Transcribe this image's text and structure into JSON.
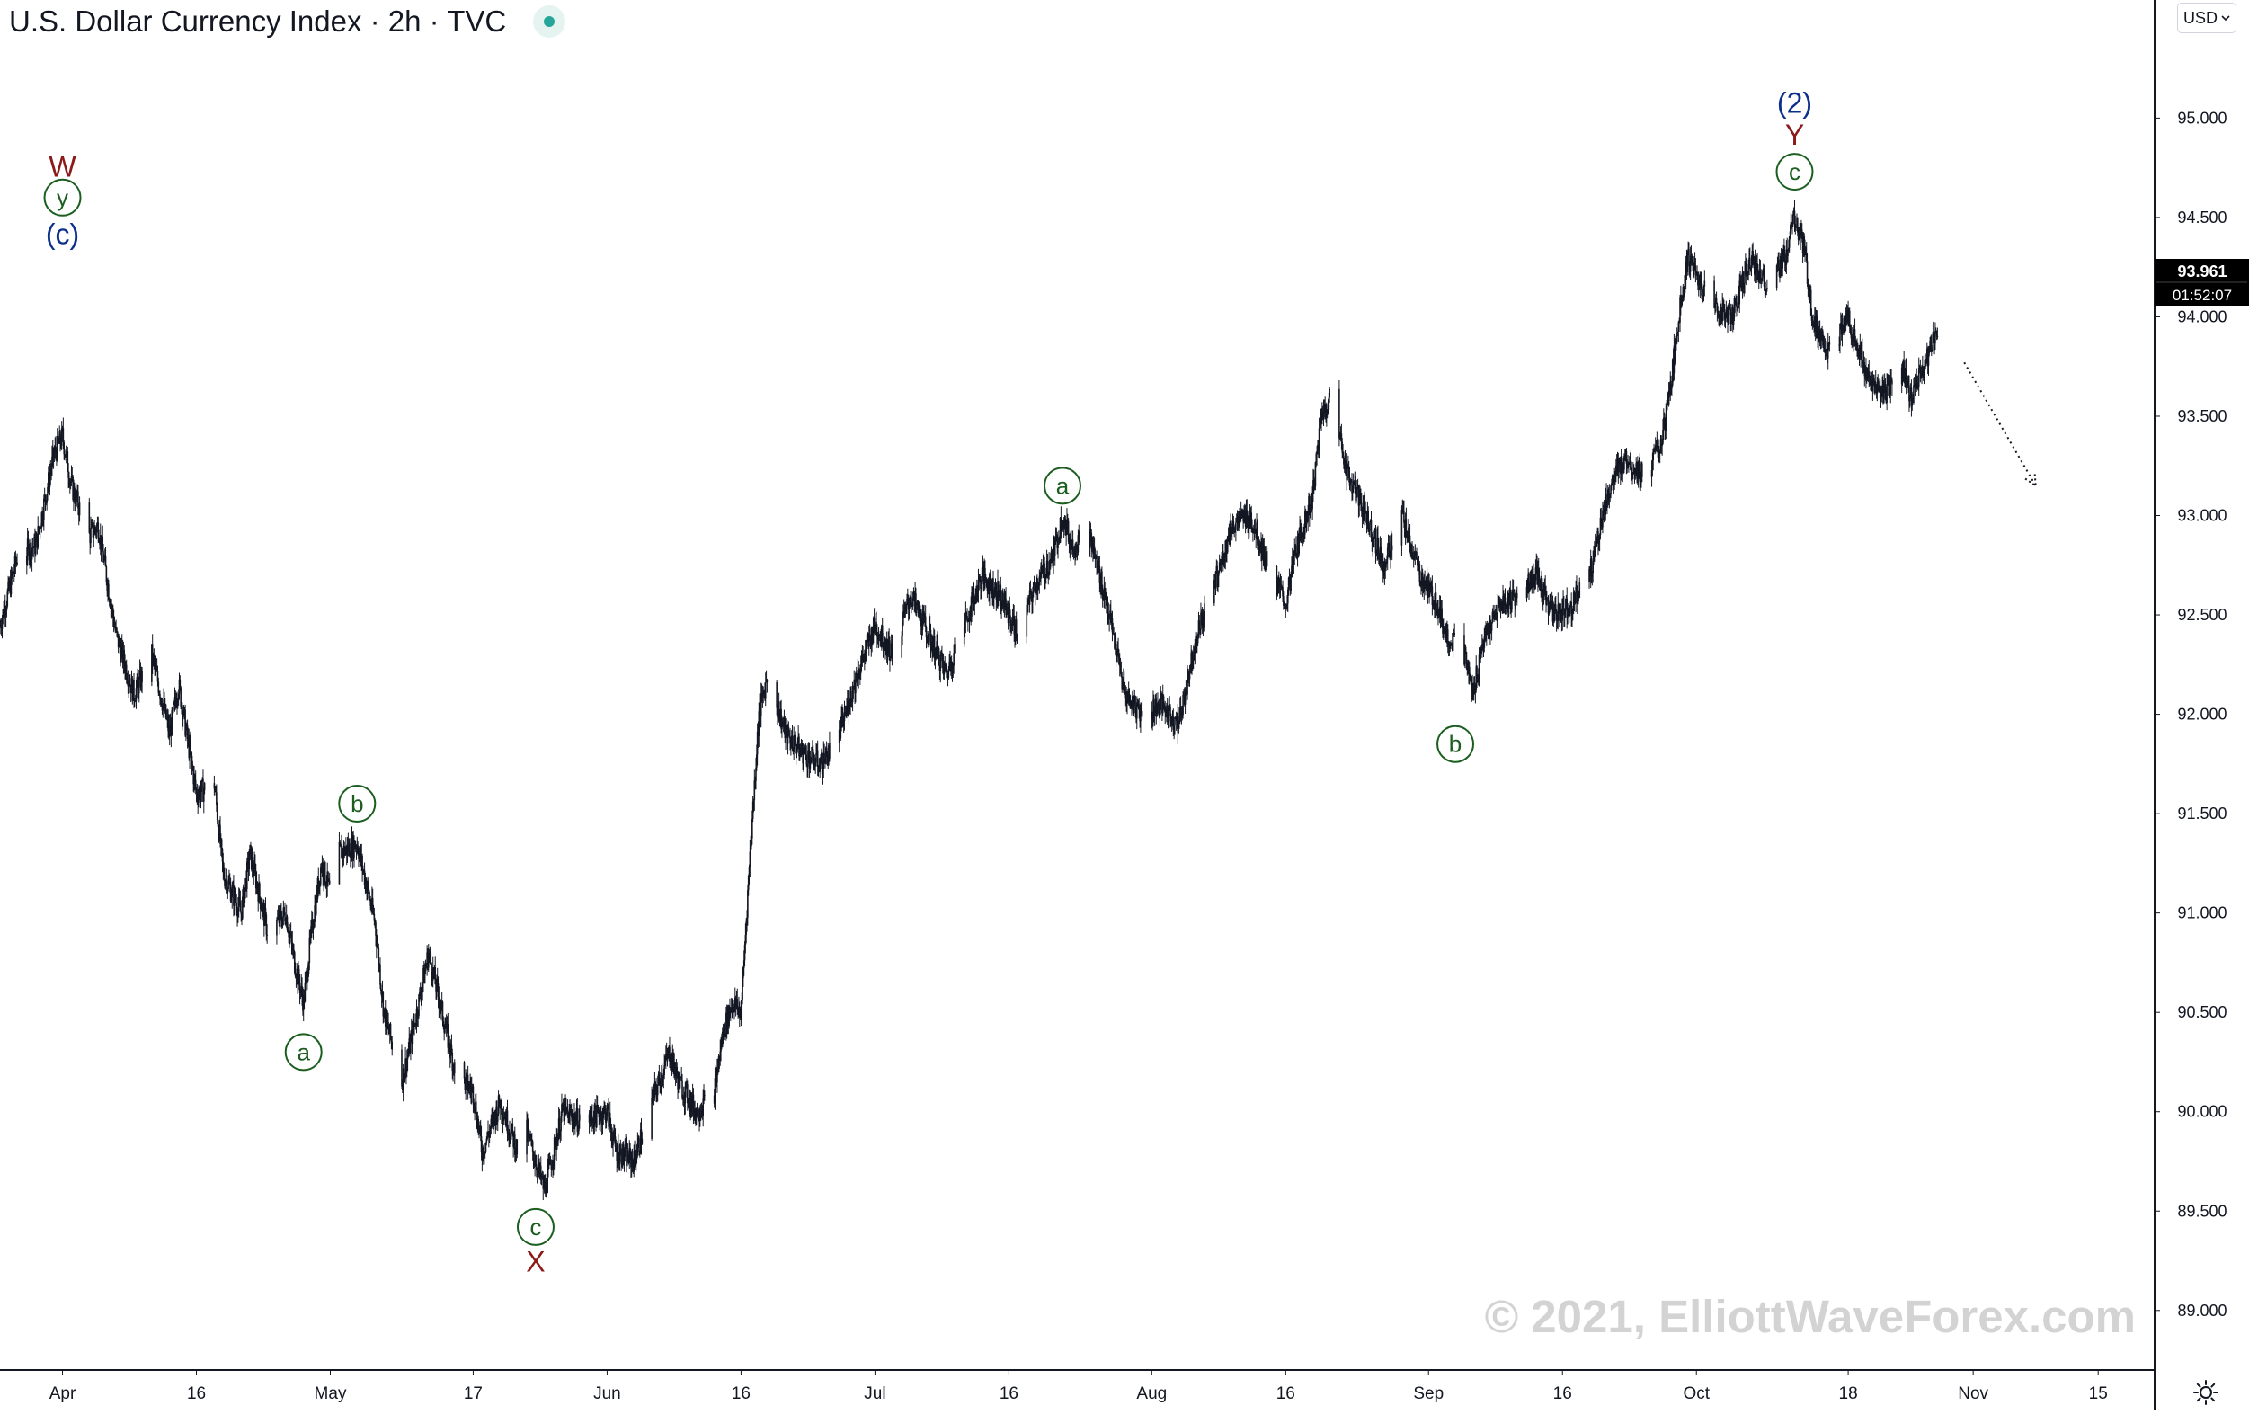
{
  "header": {
    "title": "U.S. Dollar Currency Index · 2h · TVC",
    "currency": "USD"
  },
  "price_label": {
    "price": "93.961",
    "countdown": "01:52:07"
  },
  "watermark": "© 2021, ElliottWaveForex.com",
  "colors": {
    "candle": "#131722",
    "wave_green": "#1b5e20",
    "wave_red": "#8b1a1a",
    "wave_blue": "#0d2f8c",
    "watermark": "#d3d3d3",
    "price_badge": "#000000",
    "axis_text": "#131722",
    "axis_line": "#131722"
  },
  "icons": [
    "status-dot-icon",
    "chevron-down-icon",
    "settings-sun-icon"
  ],
  "chart_data": {
    "type": "candlestick",
    "title": "U.S. Dollar Currency Index · 2h · TVC",
    "ylim": [
      88.8,
      95.35
    ],
    "y_ticks": [
      "95.000",
      "94.500",
      "94.000",
      "93.500",
      "93.000",
      "92.500",
      "92.000",
      "91.500",
      "91.000",
      "90.500",
      "90.000",
      "89.500",
      "89.000"
    ],
    "x_range": [
      "2021-03-25",
      "2021-11-18"
    ],
    "x_ticks": [
      {
        "date": "2021-04-01",
        "label": "Apr"
      },
      {
        "date": "2021-04-16",
        "label": "16"
      },
      {
        "date": "2021-05-01",
        "label": "May"
      },
      {
        "date": "2021-05-17",
        "label": "17"
      },
      {
        "date": "2021-06-01",
        "label": "Jun"
      },
      {
        "date": "2021-06-16",
        "label": "16"
      },
      {
        "date": "2021-07-01",
        "label": "Jul"
      },
      {
        "date": "2021-07-16",
        "label": "16"
      },
      {
        "date": "2021-08-01",
        "label": "Aug"
      },
      {
        "date": "2021-08-16",
        "label": "16"
      },
      {
        "date": "2021-09-01",
        "label": "Sep"
      },
      {
        "date": "2021-09-16",
        "label": "16"
      },
      {
        "date": "2021-10-01",
        "label": "Oct"
      },
      {
        "date": "2021-10-18",
        "label": "18"
      },
      {
        "date": "2021-11-01",
        "label": "Nov"
      },
      {
        "date": "2021-11-15",
        "label": "15"
      }
    ],
    "price_path": [
      [
        "2021-03-25",
        92.45
      ],
      [
        "2021-03-27",
        92.8
      ],
      [
        "2021-03-29",
        92.85
      ],
      [
        "2021-03-31",
        93.3
      ],
      [
        "2021-04-01",
        93.4
      ],
      [
        "2021-04-02",
        93.15
      ],
      [
        "2021-04-04",
        92.9
      ],
      [
        "2021-04-05",
        92.95
      ],
      [
        "2021-04-07",
        92.4
      ],
      [
        "2021-04-09",
        92.1
      ],
      [
        "2021-04-11",
        92.3
      ],
      [
        "2021-04-13",
        91.9
      ],
      [
        "2021-04-14",
        92.15
      ],
      [
        "2021-04-16",
        91.6
      ],
      [
        "2021-04-18",
        91.65
      ],
      [
        "2021-04-19",
        91.2
      ],
      [
        "2021-04-21",
        91.0
      ],
      [
        "2021-04-22",
        91.3
      ],
      [
        "2021-04-24",
        90.9
      ],
      [
        "2021-04-26",
        91.0
      ],
      [
        "2021-04-27",
        90.75
      ],
      [
        "2021-04-28",
        90.55
      ],
      [
        "2021-04-29",
        90.95
      ],
      [
        "2021-04-30",
        91.25
      ],
      [
        "2021-05-01",
        91.1
      ],
      [
        "2021-05-02",
        91.3
      ],
      [
        "2021-05-04",
        91.35
      ],
      [
        "2021-05-06",
        90.95
      ],
      [
        "2021-05-07",
        90.5
      ],
      [
        "2021-05-09",
        90.15
      ],
      [
        "2021-05-10",
        90.35
      ],
      [
        "2021-05-12",
        90.8
      ],
      [
        "2021-05-13",
        90.6
      ],
      [
        "2021-05-15",
        90.2
      ],
      [
        "2021-05-17",
        90.1
      ],
      [
        "2021-05-18",
        89.8
      ],
      [
        "2021-05-20",
        90.05
      ],
      [
        "2021-05-22",
        89.8
      ],
      [
        "2021-05-23",
        89.9
      ],
      [
        "2021-05-25",
        89.6
      ],
      [
        "2021-05-27",
        90.0
      ],
      [
        "2021-05-29",
        89.95
      ],
      [
        "2021-06-01",
        90.0
      ],
      [
        "2021-06-02",
        89.8
      ],
      [
        "2021-06-04",
        89.75
      ],
      [
        "2021-06-06",
        90.05
      ],
      [
        "2021-06-08",
        90.3
      ],
      [
        "2021-06-09",
        90.15
      ],
      [
        "2021-06-11",
        90.0
      ],
      [
        "2021-06-13",
        90.1
      ],
      [
        "2021-06-14",
        90.4
      ],
      [
        "2021-06-15",
        90.55
      ],
      [
        "2021-06-16",
        90.5
      ],
      [
        "2021-06-17",
        91.3
      ],
      [
        "2021-06-18",
        92.0
      ],
      [
        "2021-06-19",
        92.2
      ],
      [
        "2021-06-21",
        91.9
      ],
      [
        "2021-06-23",
        91.8
      ],
      [
        "2021-06-25",
        91.75
      ],
      [
        "2021-06-27",
        91.9
      ],
      [
        "2021-06-29",
        92.2
      ],
      [
        "2021-07-01",
        92.45
      ],
      [
        "2021-07-03",
        92.3
      ],
      [
        "2021-07-05",
        92.6
      ],
      [
        "2021-07-07",
        92.4
      ],
      [
        "2021-07-09",
        92.2
      ],
      [
        "2021-07-11",
        92.45
      ],
      [
        "2021-07-13",
        92.7
      ],
      [
        "2021-07-15",
        92.6
      ],
      [
        "2021-07-17",
        92.4
      ],
      [
        "2021-07-19",
        92.65
      ],
      [
        "2021-07-21",
        92.8
      ],
      [
        "2021-07-22",
        93.0
      ],
      [
        "2021-07-23",
        92.85
      ],
      [
        "2021-07-25",
        92.9
      ],
      [
        "2021-07-27",
        92.55
      ],
      [
        "2021-07-29",
        92.1
      ],
      [
        "2021-07-31",
        92.0
      ],
      [
        "2021-08-02",
        92.05
      ],
      [
        "2021-08-04",
        91.95
      ],
      [
        "2021-08-06",
        92.4
      ],
      [
        "2021-08-08",
        92.65
      ],
      [
        "2021-08-10",
        92.95
      ],
      [
        "2021-08-12",
        93.0
      ],
      [
        "2021-08-14",
        92.75
      ],
      [
        "2021-08-16",
        92.55
      ],
      [
        "2021-08-17",
        92.8
      ],
      [
        "2021-08-19",
        93.1
      ],
      [
        "2021-08-20",
        93.5
      ],
      [
        "2021-08-21",
        93.6
      ],
      [
        "2021-08-23",
        93.2
      ],
      [
        "2021-08-25",
        93.0
      ],
      [
        "2021-08-27",
        92.75
      ],
      [
        "2021-08-29",
        93.0
      ],
      [
        "2021-08-31",
        92.7
      ],
      [
        "2021-09-02",
        92.55
      ],
      [
        "2021-09-03",
        92.4
      ],
      [
        "2021-09-05",
        92.3
      ],
      [
        "2021-09-06",
        92.1
      ],
      [
        "2021-09-07",
        92.35
      ],
      [
        "2021-09-09",
        92.55
      ],
      [
        "2021-09-11",
        92.6
      ],
      [
        "2021-09-13",
        92.7
      ],
      [
        "2021-09-15",
        92.5
      ],
      [
        "2021-09-17",
        92.55
      ],
      [
        "2021-09-19",
        92.7
      ],
      [
        "2021-09-21",
        93.1
      ],
      [
        "2021-09-23",
        93.3
      ],
      [
        "2021-09-25",
        93.2
      ],
      [
        "2021-09-27",
        93.35
      ],
      [
        "2021-09-28",
        93.6
      ],
      [
        "2021-09-29",
        94.0
      ],
      [
        "2021-09-30",
        94.3
      ],
      [
        "2021-10-01",
        94.2
      ],
      [
        "2021-10-03",
        94.05
      ],
      [
        "2021-10-05",
        94.0
      ],
      [
        "2021-10-07",
        94.3
      ],
      [
        "2021-10-09",
        94.15
      ],
      [
        "2021-10-11",
        94.3
      ],
      [
        "2021-10-12",
        94.5
      ],
      [
        "2021-10-13",
        94.35
      ],
      [
        "2021-10-14",
        94.0
      ],
      [
        "2021-10-16",
        93.8
      ],
      [
        "2021-10-18",
        94.0
      ],
      [
        "2021-10-20",
        93.7
      ],
      [
        "2021-10-22",
        93.6
      ],
      [
        "2021-10-24",
        93.75
      ],
      [
        "2021-10-25",
        93.6
      ],
      [
        "2021-10-27",
        93.8
      ],
      [
        "2021-10-28",
        93.96
      ]
    ],
    "annotations": [
      {
        "label": "W",
        "date": "2021-04-01",
        "price": 94.76,
        "style": "plain",
        "color": "red"
      },
      {
        "label": "y",
        "date": "2021-04-01",
        "price": 94.6,
        "style": "circle",
        "color": "green"
      },
      {
        "label": "(c)",
        "date": "2021-04-01",
        "price": 94.42,
        "style": "plain",
        "color": "blue"
      },
      {
        "label": "a",
        "date": "2021-04-28",
        "price": 90.3,
        "style": "circle",
        "color": "green"
      },
      {
        "label": "b",
        "date": "2021-05-04",
        "price": 91.55,
        "style": "circle",
        "color": "green"
      },
      {
        "label": "c",
        "date": "2021-05-24",
        "price": 89.42,
        "style": "circle",
        "color": "green"
      },
      {
        "label": "X",
        "date": "2021-05-24",
        "price": 89.25,
        "style": "plain",
        "color": "red"
      },
      {
        "label": "a",
        "date": "2021-07-22",
        "price": 93.15,
        "style": "circle",
        "color": "green"
      },
      {
        "label": "b",
        "date": "2021-09-04",
        "price": 91.85,
        "style": "circle",
        "color": "green"
      },
      {
        "label": "c",
        "date": "2021-10-12",
        "price": 94.73,
        "style": "circle",
        "color": "green"
      },
      {
        "label": "Y",
        "date": "2021-10-12",
        "price": 94.92,
        "style": "plain",
        "color": "red"
      },
      {
        "label": "(2)",
        "date": "2021-10-12",
        "price": 95.08,
        "style": "plain",
        "color": "blue"
      }
    ],
    "projection": {
      "from": [
        "2021-10-31",
        93.77
      ],
      "to": [
        "2021-11-08",
        93.15
      ]
    }
  }
}
